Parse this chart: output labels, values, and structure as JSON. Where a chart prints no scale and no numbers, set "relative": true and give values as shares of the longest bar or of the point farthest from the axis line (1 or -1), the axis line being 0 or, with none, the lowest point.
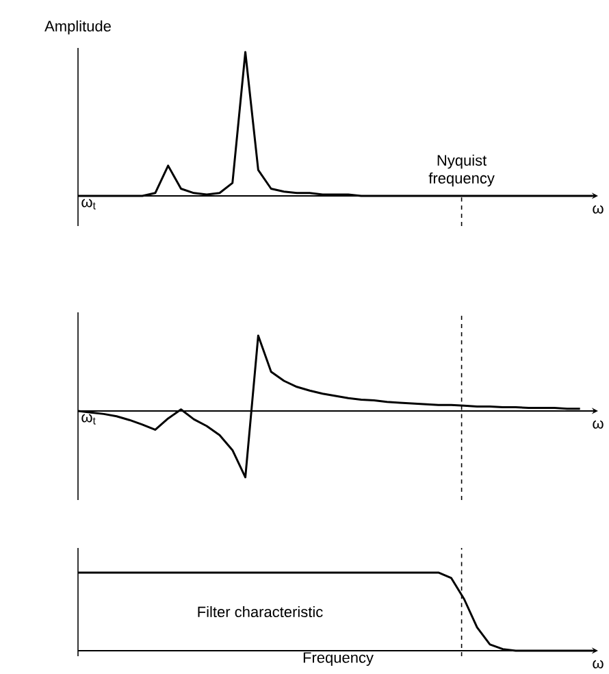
{
  "chart_data": [
    {
      "type": "line",
      "relative": true,
      "ylabel": "Amplitude",
      "xlabel": "ω",
      "annotations": [
        "ω$_{t}$",
        "Nyquist frequency"
      ],
      "categories": [
        null,
        null,
        null,
        null,
        null,
        null,
        null,
        null,
        null,
        null,
        null,
        null,
        null,
        null,
        null,
        null,
        null,
        null,
        null,
        null,
        null,
        null,
        null,
        null,
        null,
        null,
        null,
        null,
        null,
        null,
        null,
        null,
        null,
        null,
        null,
        null,
        null,
        null,
        null,
        null,
        null
      ],
      "series": [
        {
          "color": "#000000",
          "values": [
            0,
            0,
            0,
            0,
            0,
            0,
            0.02,
            0.21,
            0.05,
            0.02,
            0.01,
            0.02,
            0.09,
            1.0,
            0.18,
            0.05,
            0.03,
            0.02,
            0.02,
            0.01,
            0.01,
            0.01,
            0,
            0,
            0,
            0,
            0,
            0,
            0,
            0,
            0,
            0,
            0,
            0,
            0,
            0,
            0,
            0,
            0,
            0,
            0
          ]
        }
      ]
    },
    {
      "type": "line",
      "relative": true,
      "xlabel": "ω",
      "annotations": [
        "ω$_{t}$"
      ],
      "categories": [
        null,
        null,
        null,
        null,
        null,
        null,
        null,
        null,
        null,
        null,
        null,
        null,
        null,
        null,
        null,
        null,
        null,
        null,
        null,
        null,
        null,
        null,
        null,
        null,
        null,
        null,
        null,
        null,
        null,
        null,
        null,
        null,
        null,
        null,
        null,
        null,
        null,
        null,
        null,
        null,
        null
      ],
      "series": [
        {
          "color": "#000000",
          "values": [
            0,
            -0.02,
            -0.04,
            -0.07,
            -0.12,
            -0.18,
            -0.25,
            -0.1,
            0.02,
            -0.11,
            -0.2,
            -0.32,
            -0.52,
            -0.88,
            1.0,
            0.52,
            0.4,
            0.32,
            0.27,
            0.23,
            0.2,
            0.17,
            0.15,
            0.14,
            0.12,
            0.11,
            0.1,
            0.09,
            0.08,
            0.08,
            0.07,
            0.06,
            0.06,
            0.05,
            0.05,
            0.04,
            0.04,
            0.04,
            0.03,
            0.03,
            null
          ]
        }
      ]
    },
    {
      "type": "line",
      "relative": true,
      "xlabel": "Frequency",
      "annotations": [
        "ω"
      ],
      "categories": [
        null,
        null,
        null,
        null,
        null,
        null,
        null,
        null,
        null,
        null,
        null,
        null,
        null,
        null,
        null,
        null,
        null,
        null,
        null,
        null,
        null,
        null,
        null,
        null,
        null,
        null,
        null,
        null,
        null,
        null,
        null,
        null,
        null,
        null,
        null,
        null,
        null,
        null,
        null,
        null,
        null
      ],
      "series": [
        {
          "name": "Filter characteristic",
          "color": "#000000",
          "values": [
            1,
            1,
            1,
            1,
            1,
            1,
            1,
            1,
            1,
            1,
            1,
            1,
            1,
            1,
            1,
            1,
            1,
            1,
            1,
            1,
            1,
            1,
            1,
            1,
            1,
            1,
            1,
            1,
            1,
            0.93,
            0.66,
            0.3,
            0.08,
            0.02,
            0,
            0,
            0,
            0,
            0,
            0,
            0
          ]
        }
      ]
    }
  ]
}
